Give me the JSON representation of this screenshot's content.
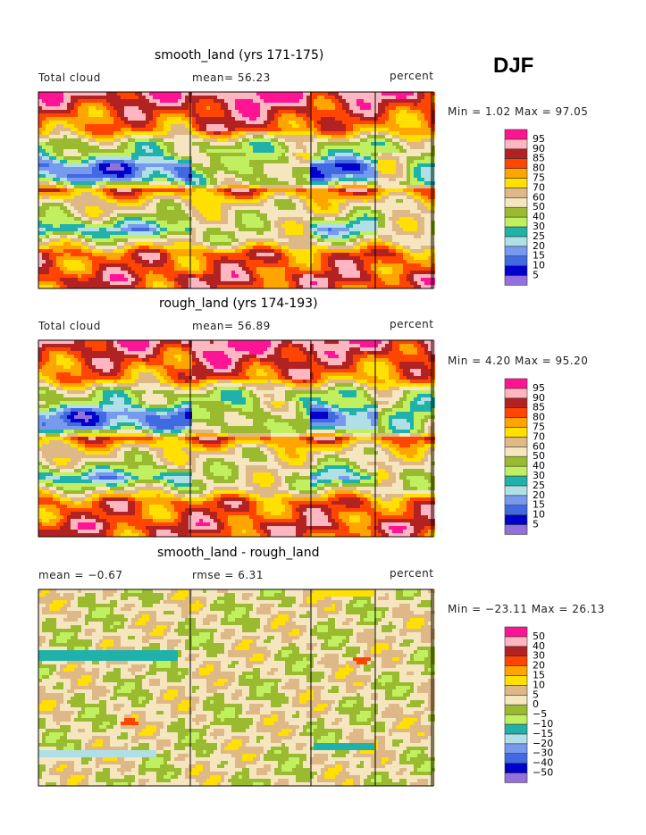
{
  "season": "DJF",
  "level_colors": [
    "#9370db",
    "#0000cd",
    "#4169e1",
    "#7799ee",
    "#b0e0e6",
    "#20b2aa",
    "#c0f060",
    "#9abb30",
    "#f5e6c0",
    "#deb887",
    "#ffe000",
    "#ffa500",
    "#ff4500",
    "#b22222",
    "#ffb6c1",
    "#ff1493"
  ],
  "chart_data": [
    {
      "type": "heatmap",
      "title": "smooth_land (yrs 171-175)",
      "left_label": "Total cloud",
      "center_label": "mean=  56.23",
      "units": "percent",
      "minmax": "Min =    1.02 Max =   97.05",
      "levels": [
        "5",
        "10",
        "15",
        "20",
        "25",
        "30",
        "40",
        "50",
        "60",
        "70",
        "75",
        "80",
        "85",
        "90",
        "95"
      ],
      "min": 1.02,
      "max": 97.05,
      "mean": 56.23
    },
    {
      "type": "heatmap",
      "title": "rough_land (yrs 174-193)",
      "left_label": "Total cloud",
      "center_label": "mean=  56.89",
      "units": "percent",
      "minmax": "Min =    4.20 Max =   95.20",
      "levels": [
        "5",
        "10",
        "15",
        "20",
        "25",
        "30",
        "40",
        "50",
        "60",
        "70",
        "75",
        "80",
        "85",
        "90",
        "95"
      ],
      "min": 4.2,
      "max": 95.2,
      "mean": 56.89
    },
    {
      "type": "heatmap",
      "title": "smooth_land - rough_land",
      "left_label": "mean =  −0.67",
      "center_label": "rmse =   6.31",
      "units": "percent",
      "minmax": "Min = −23.11 Max =   26.13",
      "levels": [
        "−50",
        "−40",
        "−30",
        "−20",
        "−15",
        "−10",
        "−5",
        "0",
        "5",
        "10",
        "15",
        "20",
        "30",
        "40",
        "50"
      ],
      "min": -23.11,
      "max": 26.13,
      "mean": -0.67,
      "rmse": 6.31
    }
  ]
}
